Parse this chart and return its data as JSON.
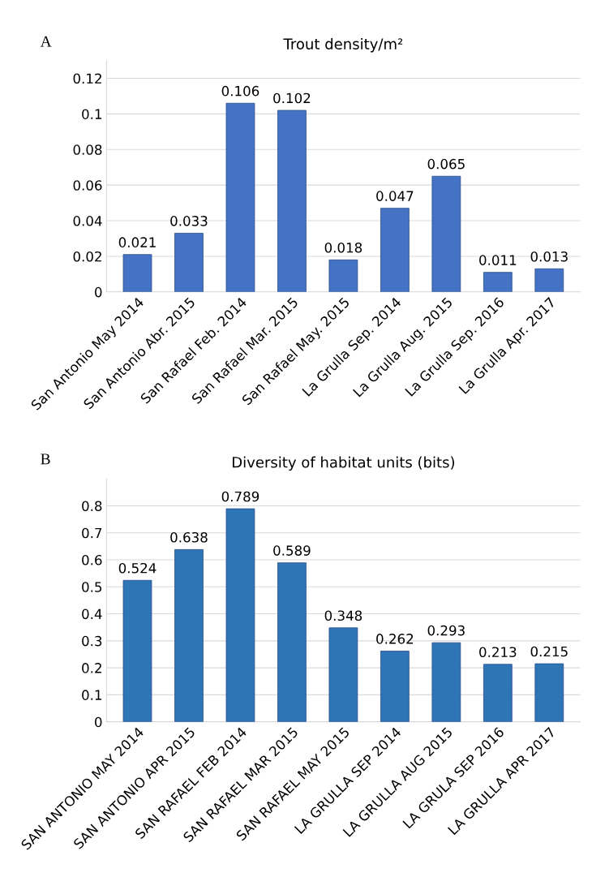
{
  "chart_data": [
    {
      "type": "bar",
      "title": "Trout density/m²",
      "annotations": [
        "A"
      ],
      "categories": [
        "San Antonio May 2014",
        "San Antonio Abr. 2015",
        "San Rafael Feb. 2014",
        "San Rafael Mar. 2015",
        "San Rafael May. 2015",
        "La Grulla Sep. 2014",
        "La Grulla Aug. 2015",
        "La Grulla Sep. 2016",
        "La Grulla Apr. 2017"
      ],
      "values": [
        0.021,
        0.033,
        0.106,
        0.102,
        0.018,
        0.047,
        0.065,
        0.011,
        0.013
      ],
      "color": "#4472c4",
      "ylim": [
        0,
        0.13
      ],
      "yticks": [
        0,
        0.02,
        0.04,
        0.06,
        0.08,
        0.1,
        0.12
      ],
      "grid": "y",
      "data_labels": true
    },
    {
      "type": "bar",
      "title": "Diversity of habitat units (bits)",
      "annotations": [
        "B"
      ],
      "categories": [
        "SAN ANTONIO MAY 2014",
        "SAN ANTONIO APR 2015",
        "SAN RAFAEL FEB 2014",
        "SAN RAFAEL MAR 2015",
        "SAN RAFAEL MAY 2015",
        "LA GRULLA SEP 2014",
        "LA GRULLA AUG 2015",
        "LA GRULA SEP 2016",
        "LA GRULLA APR 2017"
      ],
      "values": [
        0.524,
        0.638,
        0.789,
        0.589,
        0.348,
        0.262,
        0.293,
        0.213,
        0.215
      ],
      "color": "#2e75b6",
      "ylim": [
        0,
        0.9
      ],
      "yticks": [
        0,
        0.1,
        0.2,
        0.3,
        0.4,
        0.5,
        0.6,
        0.7,
        0.8
      ],
      "grid": "y",
      "data_labels": true
    }
  ]
}
